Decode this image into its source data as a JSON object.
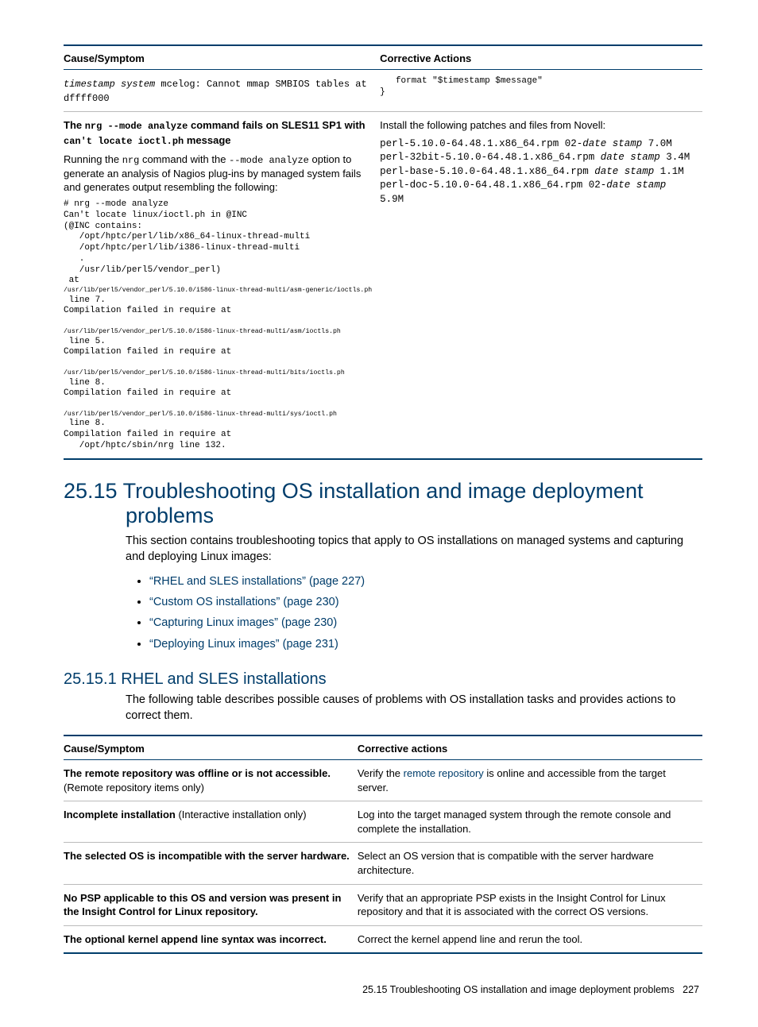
{
  "table1": {
    "headers": [
      "Cause/Symptom",
      "Corrective Actions"
    ],
    "row1": {
      "left_mono_italic": "timestamp system",
      "left_mono_rest": " mcelog: Cannot mmap SMBIOS  tables at dffff000",
      "right_mono": "   format \"$timestamp $message\"\n}"
    },
    "row2": {
      "title_a": "The ",
      "title_cmd1": "nrg --mode analyze",
      "title_b": " command fails on SLES11 SP1 with ",
      "title_cmd2": "can't locate ioctl.ph",
      "title_c": " message",
      "desc_a": "Running the ",
      "desc_cmd1": "nrg",
      "desc_b": " command with the ",
      "desc_cmd2": "--mode analyze",
      "desc_c": " option to generate an analysis of Nagios plug-ins by managed system fails and generates output resembling the following:",
      "code1": "# nrg --mode analyze\nCan't locate linux/ioctl.ph in @INC\n(@INC contains:\n   /opt/hptc/perl/lib/x86_64-linux-thread-multi\n   /opt/hptc/perl/lib/i386-linux-thread-multi\n   .\n   /usr/lib/perl5/vendor_perl)\n at",
      "code_tiny1": "/usr/lib/perl5/vendor_perl/5.10.0/i586-linux-thread-multi/asm-generic/ioctls.ph",
      "code2": " line 7.\nCompilation failed in require at\n ",
      "code_tiny2": "/usr/lib/perl5/vendor_perl/5.10.0/i586-linux-thread-multi/asm/ioctls.ph",
      "code3": " line 5.\nCompilation failed in require at\n ",
      "code_tiny3": "/usr/lib/perl5/vendor_perl/5.10.0/i586-linux-thread-multi/bits/ioctls.ph",
      "code4": " line 8.\nCompilation failed in require at\n ",
      "code_tiny4": "/usr/lib/perl5/vendor_perl/5.10.0/i586-linux-thread-multi/sys/ioctl.ph",
      "code5": " line 8.\nCompilation failed in require at\n   /opt/hptc/sbin/nrg line 132.",
      "right_intro": "Install the following patches and files from Novell:",
      "pkg1_a": "perl-5.10.0-64.48.1.x86_64.rpm 02-",
      "pkg1_b": "date stamp",
      "pkg1_c": " 7.0M",
      "pkg2_a": "perl-32bit-5.10.0-64.48.1.x86_64.rpm ",
      "pkg2_b": "date stamp",
      "pkg2_c": " 3.4M",
      "pkg3_a": "perl-base-5.10.0-64.48.1.x86_64.rpm ",
      "pkg3_b": "date stamp",
      "pkg3_c": " 1.1M",
      "pkg4_a": "perl-doc-5.10.0-64.48.1.x86_64.rpm 02-",
      "pkg4_b": "date stamp",
      "pkg4_c": " 5.9M"
    }
  },
  "h1": "25.15 Troubleshooting OS installation and image deployment problems",
  "intro": "This section contains troubleshooting topics that apply to OS installations on managed systems and capturing and deploying Linux images:",
  "links": [
    "“RHEL and SLES installations” (page 227)",
    "“Custom OS installations” (page 230)",
    "“Capturing Linux images” (page 230)",
    "“Deploying Linux images” (page 231)"
  ],
  "h2": "25.15.1 RHEL and SLES installations",
  "sub_intro": "The following table describes possible causes of problems with OS installation tasks and provides actions to correct them.",
  "table2": {
    "headers": [
      "Cause/Symptom",
      "Corrective actions"
    ],
    "rows": [
      {
        "l_bold": "The remote repository was offline or is not accessible.",
        "l_plain": " (Remote repository items only)",
        "r_a": "Verify the ",
        "r_link": "remote repository",
        "r_b": " is online and accessible from the target server."
      },
      {
        "l_bold": "Incomplete installation",
        "l_plain": "  (Interactive installation only)",
        "r_a": "Log into the target managed system through the remote console and complete the installation.",
        "r_link": "",
        "r_b": ""
      },
      {
        "l_bold": "The selected OS is incompatible with the server hardware.",
        "l_plain": "",
        "r_a": "Select an OS version that is compatible with the server hardware architecture.",
        "r_link": "",
        "r_b": ""
      },
      {
        "l_bold": "No PSP applicable to this OS and version was present in the Insight Control for Linux repository.",
        "l_plain": "",
        "r_a": "Verify that an appropriate PSP exists in the Insight Control for Linux repository and that it is associated with the correct OS versions.",
        "r_link": "",
        "r_b": ""
      },
      {
        "l_bold": "The optional kernel append line syntax was incorrect.",
        "l_plain": "",
        "r_a": "Correct the kernel append line and rerun the tool.",
        "r_link": "",
        "r_b": ""
      }
    ]
  },
  "footer_a": "25.15 Troubleshooting OS installation and image deployment problems",
  "footer_b": "227"
}
